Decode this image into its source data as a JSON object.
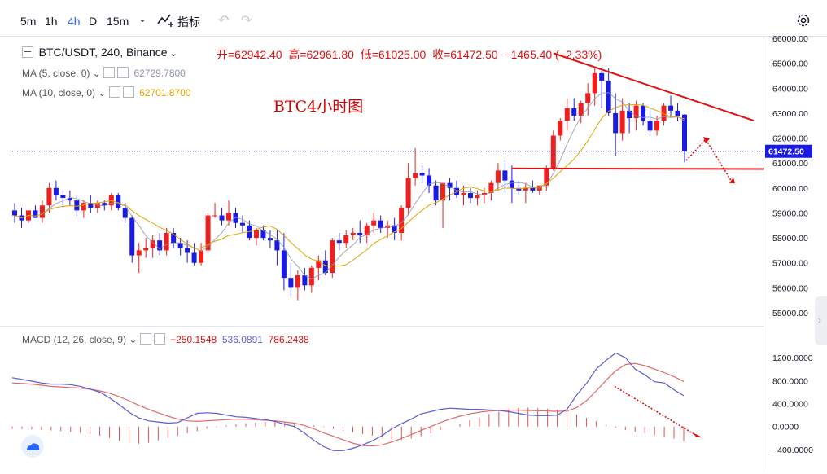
{
  "toolbar": {
    "timeframes": [
      "5m",
      "1h",
      "4h",
      "D",
      "15m"
    ],
    "active": "4h",
    "indicators_label": "指标"
  },
  "header": {
    "symbol": "BTC/USDT, 240, Binance",
    "open_label": "开=62942.40",
    "high_label": "高=62961.80",
    "low_label": "低=61025.00",
    "close_label": "收=61472.50",
    "change_label": "−1465.40 (−2.33%)"
  },
  "ma5": {
    "label": "MA (5, close, 0)",
    "value": "62729.7800",
    "color": "#8f93a8"
  },
  "ma10": {
    "label": "MA (10, close, 0)",
    "value": "62701.8700",
    "color": "#e3a300"
  },
  "annotation": {
    "text": "BTC4小时图",
    "color": "#d50000"
  },
  "macd": {
    "label": "MACD (12, 26, close, 9)",
    "hist_value": "−250.1548",
    "macd_value": "536.0891",
    "signal_value": "786.2438"
  },
  "price_tag": "61472.50",
  "colors": {
    "up": "#ef1f1f",
    "down": "#1a1ae6",
    "macd": "#5b5bd6",
    "signal": "#e06a6a",
    "trend": "#e01010"
  },
  "chart_data": [
    {
      "type": "candlestick",
      "ylim": [
        55000,
        66000
      ],
      "yticks": [
        "66000.00",
        "65000.00",
        "64000.00",
        "63000.00",
        "62000.00",
        "61000.00",
        "60000.00",
        "59000.00",
        "58000.00",
        "57000.00",
        "56000.00",
        "55000.00"
      ],
      "candles": [
        [
          59100,
          59400,
          58600,
          58900
        ],
        [
          58900,
          59200,
          58400,
          58700
        ],
        [
          58700,
          59100,
          58600,
          59100
        ],
        [
          59100,
          59300,
          58800,
          58800
        ],
        [
          58800,
          59500,
          58600,
          59300
        ],
        [
          59300,
          60200,
          59000,
          60000
        ],
        [
          60000,
          60300,
          59500,
          59700
        ],
        [
          59700,
          59900,
          59300,
          59600
        ],
        [
          59600,
          59900,
          59300,
          59500
        ],
        [
          59500,
          59700,
          58900,
          59100
        ],
        [
          59100,
          59500,
          58800,
          59400
        ],
        [
          59400,
          59700,
          59000,
          59200
        ],
        [
          59200,
          59500,
          59000,
          59400
        ],
        [
          59400,
          59500,
          59100,
          59300
        ],
        [
          59300,
          59800,
          59100,
          59700
        ],
        [
          59700,
          59800,
          59100,
          59200
        ],
        [
          59200,
          59400,
          58600,
          58800
        ],
        [
          58800,
          58900,
          57000,
          57300
        ],
        [
          57300,
          57800,
          56600,
          57500
        ],
        [
          57500,
          58000,
          57200,
          57600
        ],
        [
          57600,
          58100,
          57200,
          57900
        ],
        [
          57900,
          58200,
          57300,
          57500
        ],
        [
          57500,
          58400,
          57300,
          58200
        ],
        [
          58200,
          58400,
          57600,
          57800
        ],
        [
          57800,
          58000,
          57300,
          57600
        ],
        [
          57600,
          57900,
          57000,
          57400
        ],
        [
          57400,
          57800,
          56900,
          57000
        ],
        [
          57000,
          57800,
          56900,
          57500
        ],
        [
          57500,
          59000,
          57400,
          58900
        ],
        [
          58900,
          59400,
          58800,
          58900
        ],
        [
          58900,
          59200,
          58500,
          58700
        ],
        [
          58700,
          59500,
          58500,
          59000
        ],
        [
          59000,
          59200,
          58400,
          58600
        ],
        [
          58600,
          58900,
          58200,
          58500
        ],
        [
          58500,
          58700,
          57900,
          58000
        ],
        [
          58000,
          58400,
          57700,
          58300
        ],
        [
          58300,
          58500,
          57900,
          58000
        ],
        [
          58000,
          58300,
          57600,
          57900
        ],
        [
          57900,
          58300,
          56900,
          57500
        ],
        [
          57500,
          58200,
          55900,
          56400
        ],
        [
          56400,
          57000,
          55700,
          56000
        ],
        [
          56000,
          56700,
          55500,
          56500
        ],
        [
          56500,
          56800,
          55900,
          56100
        ],
        [
          56100,
          56900,
          55800,
          56800
        ],
        [
          56800,
          57300,
          56300,
          57100
        ],
        [
          57100,
          57500,
          56500,
          56600
        ],
        [
          56600,
          58000,
          56400,
          57900
        ],
        [
          57900,
          58200,
          57500,
          57800
        ],
        [
          57800,
          58300,
          57600,
          58100
        ],
        [
          58100,
          58400,
          57900,
          58200
        ],
        [
          58200,
          58700,
          57800,
          58100
        ],
        [
          58100,
          58600,
          57800,
          58500
        ],
        [
          58500,
          59000,
          58200,
          58700
        ],
        [
          58700,
          58900,
          58200,
          58400
        ],
        [
          58400,
          58700,
          58000,
          58500
        ],
        [
          58500,
          58800,
          57900,
          58200
        ],
        [
          58200,
          59300,
          57900,
          59200
        ],
        [
          59200,
          61000,
          58900,
          60400
        ],
        [
          60400,
          61600,
          60100,
          60600
        ],
        [
          60600,
          60900,
          60200,
          60500
        ],
        [
          60500,
          60800,
          59800,
          60100
        ],
        [
          60100,
          60300,
          59300,
          59500
        ],
        [
          59500,
          60200,
          58400,
          60200
        ],
        [
          60200,
          60400,
          59500,
          60000
        ],
        [
          60000,
          60300,
          59600,
          59700
        ],
        [
          59700,
          60100,
          59300,
          59800
        ],
        [
          59800,
          60000,
          59400,
          59600
        ],
        [
          59600,
          59900,
          59300,
          59700
        ],
        [
          59700,
          60000,
          59400,
          59800
        ],
        [
          59800,
          60300,
          59500,
          60200
        ],
        [
          60200,
          61000,
          59900,
          60700
        ],
        [
          60700,
          61100,
          59800,
          60300
        ],
        [
          60300,
          60900,
          59400,
          60000
        ],
        [
          60000,
          60300,
          59700,
          59900
        ],
        [
          59900,
          60200,
          59400,
          60000
        ],
        [
          60000,
          60300,
          59800,
          59900
        ],
        [
          59900,
          60100,
          59700,
          60100
        ],
        [
          60100,
          60900,
          59900,
          60800
        ],
        [
          60800,
          62300,
          60700,
          62100
        ],
        [
          62100,
          62800,
          61900,
          62700
        ],
        [
          62700,
          63600,
          62300,
          63200
        ],
        [
          63200,
          63600,
          62700,
          62900
        ],
        [
          62900,
          63500,
          62600,
          63400
        ],
        [
          63400,
          64200,
          62900,
          63800
        ],
        [
          63800,
          64800,
          63300,
          64600
        ],
        [
          64600,
          64700,
          63200,
          64300
        ],
        [
          64300,
          64800,
          62900,
          63000
        ],
        [
          63000,
          63800,
          61300,
          62200
        ],
        [
          62200,
          63600,
          61900,
          63100
        ],
        [
          63100,
          63400,
          62200,
          62800
        ],
        [
          62800,
          63500,
          62300,
          63300
        ],
        [
          63300,
          63400,
          62500,
          62700
        ],
        [
          62700,
          63200,
          62200,
          62300
        ],
        [
          62300,
          62900,
          62100,
          62700
        ],
        [
          62700,
          63400,
          62500,
          63300
        ],
        [
          63300,
          63700,
          62900,
          63100
        ],
        [
          63100,
          63400,
          62700,
          62900
        ],
        [
          62942,
          62962,
          61025,
          61472
        ]
      ]
    },
    {
      "type": "line+bar",
      "name": "MACD",
      "ylim": [
        -600,
        1500
      ],
      "yticks": [
        "1200.0000",
        "800.0000",
        "400.0000",
        "0.0000",
        "−400.0000"
      ],
      "macd": [
        850,
        820,
        790,
        760,
        740,
        740,
        730,
        700,
        650,
        600,
        500,
        380,
        250,
        150,
        100,
        80,
        60,
        70,
        150,
        230,
        240,
        230,
        200,
        170,
        160,
        140,
        120,
        90,
        40,
        0,
        -110,
        -240,
        -350,
        -420,
        -420,
        -380,
        -320,
        -250,
        -160,
        -40,
        50,
        130,
        220,
        260,
        300,
        320,
        310,
        300,
        300,
        290,
        280,
        260,
        230,
        200,
        190,
        190,
        200,
        300,
        550,
        750,
        1000,
        1150,
        1280,
        1200,
        1000,
        900,
        780,
        760,
        640,
        536
      ],
      "signal": [
        760,
        750,
        740,
        720,
        700,
        690,
        680,
        670,
        650,
        620,
        580,
        520,
        450,
        370,
        300,
        240,
        180,
        130,
        100,
        90,
        100,
        110,
        120,
        130,
        130,
        120,
        110,
        100,
        80,
        60,
        20,
        -40,
        -110,
        -170,
        -230,
        -290,
        -330,
        -340,
        -320,
        -270,
        -210,
        -140,
        -70,
        0,
        70,
        130,
        180,
        220,
        250,
        270,
        280,
        285,
        285,
        280,
        275,
        270,
        265,
        270,
        330,
        450,
        620,
        800,
        970,
        1080,
        1100,
        1060,
        1000,
        940,
        870,
        786
      ],
      "hist": [
        -40,
        -45,
        -50,
        -60,
        -70,
        -80,
        -95,
        -110,
        -130,
        -160,
        -200,
        -250,
        -290,
        -300,
        -280,
        -240,
        -200,
        -160,
        -120,
        -80,
        -40,
        -10,
        20,
        40,
        60,
        70,
        80,
        80,
        80,
        70,
        50,
        20,
        -10,
        -40,
        -70,
        -100,
        -130,
        -160,
        -190,
        -220,
        -230,
        -210,
        -170,
        -120,
        -60,
        0,
        50,
        110,
        160,
        220,
        260,
        300,
        320,
        330,
        320,
        310,
        290,
        260,
        210,
        150,
        90,
        30,
        -20,
        -60,
        -90,
        -120,
        -150,
        -180,
        -210,
        -250
      ]
    }
  ]
}
